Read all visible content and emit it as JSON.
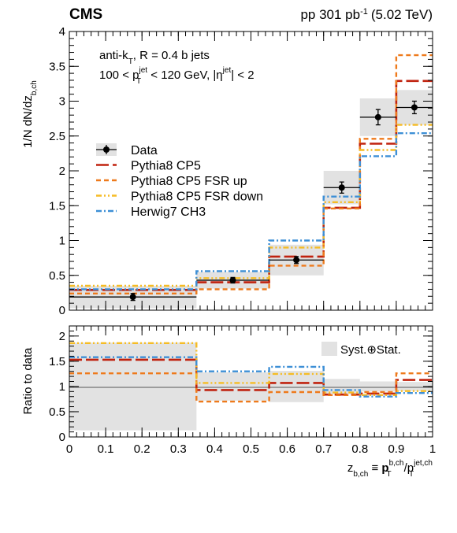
{
  "header": {
    "experiment": "CMS",
    "lumi_label": "pp 301 pb",
    "lumi_exp": "-1",
    "energy": "(5.02 TeV)"
  },
  "annotations": {
    "line1_pre": "anti-k",
    "line1_sub": "T",
    "line1_post": ", R = 0.4 b jets",
    "line2_a": "100 < p",
    "line2_sup": "jet",
    "line2_sub": "T",
    "line2_b": " < 120 GeV, |η",
    "line2_sup2": "jet",
    "line2_c": "| < 2"
  },
  "colors": {
    "band": "#e2e2e2",
    "pythia": "#c0220f",
    "fsr_up": "#ee7a1c",
    "fsr_down": "#f5bc25",
    "herwig": "#3d8fd6",
    "data": "#000000"
  },
  "chart_data": [
    {
      "type": "line",
      "panel": "main",
      "ylabel": "1/N dN/dz",
      "ylabel_sub": "b,ch",
      "ylim": [
        0,
        4
      ],
      "yticks": [
        "0",
        "0.5",
        "1",
        "1.5",
        "2",
        "2.5",
        "3",
        "3.5",
        "4"
      ],
      "bin_edges": [
        0,
        0.35,
        0.55,
        0.7,
        0.8,
        0.9,
        1.0
      ],
      "legend": {
        "position": "middle-left",
        "entries": [
          "Data",
          "Pythia8 CP5",
          "Pythia8 CP5 FSR up",
          "Pythia8 CP5 FSR down",
          "Herwig7 CH3"
        ]
      },
      "data": {
        "name": "Data",
        "x": [
          0.175,
          0.45,
          0.625,
          0.75,
          0.85,
          0.95
        ],
        "y": [
          0.19,
          0.43,
          0.72,
          1.76,
          2.77,
          2.91
        ],
        "stat_err": [
          0.05,
          0.04,
          0.05,
          0.08,
          0.11,
          0.09
        ],
        "syst_err": [
          0.16,
          0.12,
          0.22,
          0.24,
          0.27,
          0.25
        ]
      },
      "series": [
        {
          "name": "Pythia8 CP5",
          "values": [
            0.29,
            0.4,
            0.77,
            1.47,
            2.39,
            3.29
          ]
        },
        {
          "name": "Pythia8 CP5 FSR up",
          "values": [
            0.24,
            0.3,
            0.64,
            1.46,
            2.46,
            3.66
          ]
        },
        {
          "name": "Pythia8 CP5 FSR down",
          "values": [
            0.35,
            0.46,
            0.9,
            1.55,
            2.3,
            2.66
          ]
        },
        {
          "name": "Herwig7 CH3",
          "values": [
            0.3,
            0.56,
            1.0,
            1.63,
            2.21,
            2.54
          ]
        }
      ]
    },
    {
      "type": "line",
      "panel": "ratio",
      "ylabel": "Ratio to data",
      "xlabel": "z",
      "xlabel_sub": "b,ch",
      "xlabel_eq": " ≡ ",
      "xlabel_p": "p",
      "xlabel_p_sup": "b,ch",
      "xlabel_p_sub": "T",
      "xlabel_slash": "/p",
      "xlabel_q_sup": "jet,ch",
      "xlabel_q_sub": "T",
      "xlim": [
        0,
        1
      ],
      "ylim": [
        0,
        2.2
      ],
      "yticks": [
        "0",
        "0.5",
        "1",
        "1.5",
        "2"
      ],
      "xticks": [
        "0",
        "0.1",
        "0.2",
        "0.3",
        "0.4",
        "0.5",
        "0.6",
        "0.7",
        "0.8",
        "0.9",
        "1"
      ],
      "legend": {
        "position": "top-right",
        "entries": [
          "Syst.⊕Stat."
        ]
      },
      "band_err": [
        0.87,
        0.28,
        0.31,
        0.15,
        0.1,
        0.09
      ],
      "series": [
        {
          "name": "Pythia8 CP5",
          "values": [
            1.53,
            0.93,
            1.07,
            0.84,
            0.86,
            1.13
          ]
        },
        {
          "name": "Pythia8 CP5 FSR up",
          "values": [
            1.26,
            0.7,
            0.89,
            0.83,
            0.89,
            1.26
          ]
        },
        {
          "name": "Pythia8 CP5 FSR down",
          "values": [
            1.86,
            1.07,
            1.25,
            0.88,
            0.83,
            0.91
          ]
        },
        {
          "name": "Herwig7 CH3",
          "values": [
            1.58,
            1.3,
            1.39,
            0.93,
            0.8,
            0.87
          ]
        }
      ]
    }
  ]
}
